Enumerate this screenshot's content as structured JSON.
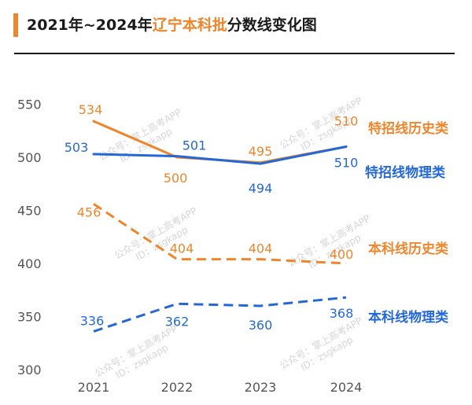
{
  "title": {
    "prefix": "2021年~2024年",
    "highlight": "辽宁本科批",
    "suffix": "分数线变化图"
  },
  "watermark": {
    "line1": "公众号：掌上高考APP",
    "line2": "ID：zsgkapp"
  },
  "colors": {
    "orange": "#F0862C",
    "blue": "#2468D8",
    "axis_text": "#555555",
    "accent": "#F0862C"
  },
  "chart_data": {
    "type": "line",
    "x": [
      "2021",
      "2022",
      "2023",
      "2024"
    ],
    "ylim": [
      300,
      560
    ],
    "yticks": [
      550,
      500,
      450,
      400,
      350,
      300
    ],
    "grid": false,
    "legend": "labels at line ends (right)",
    "series": [
      {
        "name": "特招线历史类",
        "values": [
          534,
          500,
          495,
          510
        ],
        "color": "#F0862C",
        "style": "solid"
      },
      {
        "name": "特招线物理类",
        "values": [
          503,
          501,
          494,
          510
        ],
        "color": "#2468D8",
        "style": "solid"
      },
      {
        "name": "本科线历史类",
        "values": [
          456,
          404,
          404,
          400
        ],
        "color": "#F0862C",
        "style": "dashed"
      },
      {
        "name": "本科线物理类",
        "values": [
          336,
          362,
          360,
          368
        ],
        "color": "#2468D8",
        "style": "dashed"
      }
    ]
  }
}
